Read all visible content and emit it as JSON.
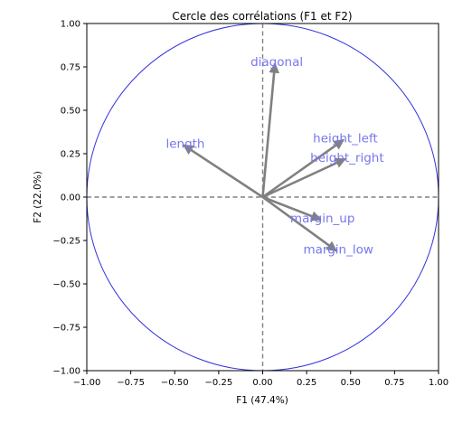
{
  "chart_data": {
    "type": "scatter",
    "title": "Cercle des corrélations (F1 et F2)",
    "xlabel": "F1 (47.4%)",
    "ylabel": "F2 (22.0%)",
    "xlim": [
      -1.0,
      1.0
    ],
    "ylim": [
      -1.0,
      1.0
    ],
    "xticks": [
      "−1.00",
      "−0.75",
      "−0.50",
      "−0.25",
      "0.00",
      "0.25",
      "0.50",
      "0.75",
      "1.00"
    ],
    "yticks": [
      "−1.00",
      "−0.75",
      "−0.50",
      "−0.25",
      "0.00",
      "0.25",
      "0.50",
      "0.75",
      "1.00"
    ],
    "grid": false,
    "reference_lines": {
      "x": 0,
      "y": 0,
      "style": "dashed"
    },
    "unit_circle": true,
    "variables": [
      {
        "name": "diagonal",
        "x": 0.07,
        "y": 0.77
      },
      {
        "name": "length",
        "x": -0.45,
        "y": 0.3
      },
      {
        "name": "height_left",
        "x": 0.46,
        "y": 0.33
      },
      {
        "name": "height_right",
        "x": 0.47,
        "y": 0.22
      },
      {
        "name": "margin_up",
        "x": 0.33,
        "y": -0.13
      },
      {
        "name": "margin_low",
        "x": 0.42,
        "y": -0.31
      }
    ],
    "colors": {
      "circle": "#3333dd",
      "arrow": "#808080",
      "label": "#7777ee",
      "axis_line": "#808080"
    }
  }
}
